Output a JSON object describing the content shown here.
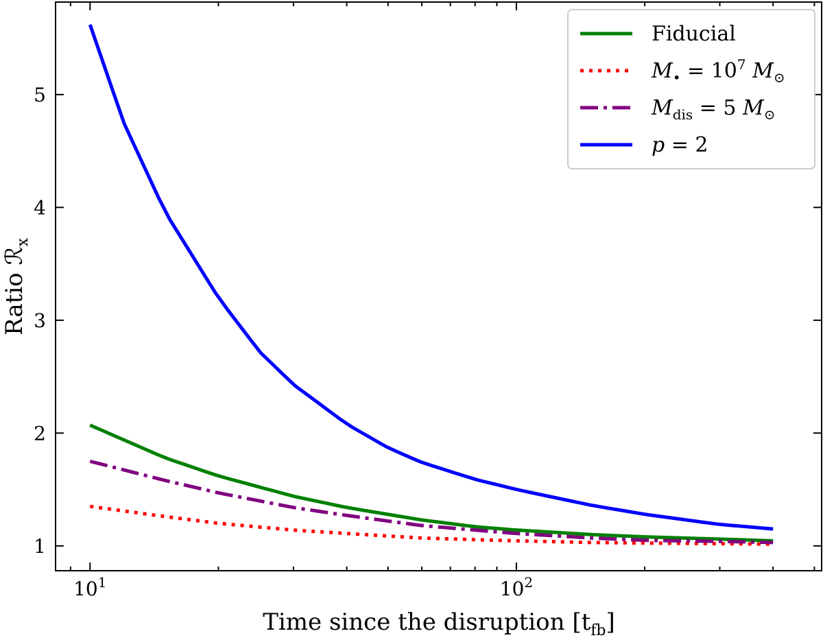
{
  "chart_data": {
    "type": "line",
    "xlabel": "Time since the disruption [t",
    "xlabel_sub": "fb",
    "xlabel_end": "]",
    "ylabel": "Ratio ℛ",
    "ylabel_sub": "x",
    "xscale": "log",
    "xlim": [
      8.3,
      520
    ],
    "ylim": [
      0.78,
      5.82
    ],
    "xticks": [
      {
        "value": 10,
        "base": "10",
        "exp": "1"
      },
      {
        "value": 100,
        "base": "10",
        "exp": "2"
      }
    ],
    "yticks": [
      1,
      2,
      3,
      4,
      5
    ],
    "grid": false,
    "legend_position": "top-right",
    "series": [
      {
        "name": "Fiducial",
        "color": "#008000",
        "style": "solid",
        "x": [
          10,
          15,
          20,
          30,
          40,
          60,
          80,
          100,
          150,
          200,
          300,
          400
        ],
        "y": [
          2.07,
          1.78,
          1.62,
          1.44,
          1.34,
          1.23,
          1.17,
          1.14,
          1.1,
          1.08,
          1.06,
          1.045
        ]
      },
      {
        "name_parts": [
          "M",
          "•",
          " = 10",
          "7",
          " M",
          "⊙"
        ],
        "color": "#ff0000",
        "style": "dotted",
        "x": [
          10,
          15,
          20,
          30,
          40,
          60,
          80,
          100,
          150,
          200,
          300,
          400
        ],
        "y": [
          1.35,
          1.26,
          1.2,
          1.14,
          1.11,
          1.07,
          1.055,
          1.045,
          1.03,
          1.025,
          1.02,
          1.015
        ]
      },
      {
        "name_parts": [
          "M",
          "dis",
          " = 5 ",
          "M",
          "⊙"
        ],
        "color": "#800080",
        "style": "dashdot",
        "x": [
          10,
          15,
          20,
          30,
          40,
          60,
          80,
          100,
          150,
          200,
          300,
          400
        ],
        "y": [
          1.75,
          1.58,
          1.47,
          1.34,
          1.27,
          1.18,
          1.14,
          1.11,
          1.07,
          1.05,
          1.04,
          1.03
        ]
      },
      {
        "name_parts": [
          "p",
          " = 2"
        ],
        "color": "#0000ff",
        "style": "solid",
        "x": [
          10,
          12,
          15,
          20,
          25,
          30,
          40,
          50,
          60,
          80,
          100,
          150,
          200,
          300,
          400
        ],
        "y": [
          5.62,
          4.75,
          3.96,
          3.2,
          2.72,
          2.43,
          2.08,
          1.87,
          1.74,
          1.59,
          1.5,
          1.36,
          1.28,
          1.19,
          1.15
        ]
      }
    ]
  }
}
